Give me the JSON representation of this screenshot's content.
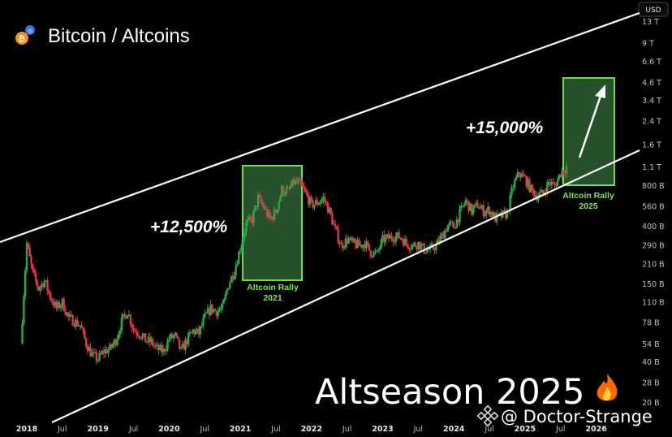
{
  "header": {
    "title": "Bitcoin / Altcoins",
    "currency_badge": "USD",
    "logo_icon": "bitcoin-altcoins-logo"
  },
  "annotations": {
    "rally_2021_pct": "+12,500%",
    "rally_2021_label_1": "Altcoin Rally",
    "rally_2021_label_2": "2021",
    "rally_2025_pct": "+15,000%",
    "rally_2025_label_1": "Altcoin Rally",
    "rally_2025_label_2": "2025",
    "banner": "Altseason 2025",
    "banner_icon": "fire-emoji",
    "watermark": "@ Doctor-Strange",
    "watermark_icon": "binance-icon"
  },
  "colors": {
    "up": "#2ba84a",
    "down": "#e2354d",
    "rally_box_fill": "#2e5e35",
    "rally_box_border": "#6fdc4a",
    "channel": "#ffffff"
  },
  "chart_data": {
    "type": "candlestick",
    "title": "Bitcoin / Altcoins",
    "scale": "log",
    "y_unit": "USD",
    "y_ticks": [
      "13 T",
      "9 T",
      "6.6 T",
      "4.6 T",
      "3.4 T",
      "2.4 T",
      "1.6 T",
      "1.1 T",
      "800 B",
      "560 B",
      "400 B",
      "290 B",
      "210 B",
      "150 B",
      "110 B",
      "78 B",
      "54 B",
      "40 B",
      "28 B",
      "20 B"
    ],
    "x_ticks": [
      "2018",
      "Jul",
      "2019",
      "Jul",
      "2020",
      "Jul",
      "2021",
      "Jul",
      "2022",
      "Jul",
      "2023",
      "Jul",
      "2024",
      "Jul",
      "2025",
      "Jul",
      "2026"
    ],
    "series_close": [
      [
        "2017-12",
        55
      ],
      [
        "2018-01",
        300
      ],
      [
        "2018-02",
        180
      ],
      [
        "2018-03",
        140
      ],
      [
        "2018-04",
        160
      ],
      [
        "2018-05",
        120
      ],
      [
        "2018-06",
        100
      ],
      [
        "2018-07",
        110
      ],
      [
        "2018-08",
        85
      ],
      [
        "2018-09",
        80
      ],
      [
        "2018-10",
        75
      ],
      [
        "2018-11",
        55
      ],
      [
        "2018-12",
        45
      ],
      [
        "2019-01",
        42
      ],
      [
        "2019-02",
        48
      ],
      [
        "2019-03",
        50
      ],
      [
        "2019-04",
        58
      ],
      [
        "2019-05",
        80
      ],
      [
        "2019-06",
        95
      ],
      [
        "2019-07",
        70
      ],
      [
        "2019-08",
        65
      ],
      [
        "2019-09",
        58
      ],
      [
        "2019-10",
        56
      ],
      [
        "2019-11",
        50
      ],
      [
        "2019-12",
        48
      ],
      [
        "2020-01",
        60
      ],
      [
        "2020-02",
        62
      ],
      [
        "2020-03",
        48
      ],
      [
        "2020-04",
        58
      ],
      [
        "2020-05",
        68
      ],
      [
        "2020-06",
        65
      ],
      [
        "2020-07",
        85
      ],
      [
        "2020-08",
        100
      ],
      [
        "2020-09",
        95
      ],
      [
        "2020-10",
        100
      ],
      [
        "2020-11",
        150
      ],
      [
        "2020-12",
        190
      ],
      [
        "2021-01",
        280
      ],
      [
        "2021-02",
        420
      ],
      [
        "2021-03",
        450
      ],
      [
        "2021-04",
        650
      ],
      [
        "2021-05",
        550
      ],
      [
        "2021-06",
        450
      ],
      [
        "2021-07",
        520
      ],
      [
        "2021-08",
        750
      ],
      [
        "2021-09",
        720
      ],
      [
        "2021-10",
        850
      ],
      [
        "2021-11",
        830
      ],
      [
        "2021-12",
        700
      ],
      [
        "2022-01",
        580
      ],
      [
        "2022-02",
        600
      ],
      [
        "2022-03",
        650
      ],
      [
        "2022-04",
        520
      ],
      [
        "2022-05",
        380
      ],
      [
        "2022-06",
        290
      ],
      [
        "2022-07",
        320
      ],
      [
        "2022-08",
        300
      ],
      [
        "2022-09",
        290
      ],
      [
        "2022-10",
        300
      ],
      [
        "2022-11",
        260
      ],
      [
        "2022-12",
        250
      ],
      [
        "2023-01",
        320
      ],
      [
        "2023-02",
        330
      ],
      [
        "2023-03",
        340
      ],
      [
        "2023-04",
        335
      ],
      [
        "2023-05",
        300
      ],
      [
        "2023-06",
        290
      ],
      [
        "2023-07",
        300
      ],
      [
        "2023-08",
        270
      ],
      [
        "2023-09",
        270
      ],
      [
        "2023-10",
        290
      ],
      [
        "2023-11",
        340
      ],
      [
        "2023-12",
        410
      ],
      [
        "2024-01",
        400
      ],
      [
        "2024-02",
        500
      ],
      [
        "2024-03",
        620
      ],
      [
        "2024-04",
        520
      ],
      [
        "2024-05",
        580
      ],
      [
        "2024-06",
        520
      ],
      [
        "2024-07",
        530
      ],
      [
        "2024-08",
        460
      ],
      [
        "2024-09",
        480
      ],
      [
        "2024-10",
        500
      ],
      [
        "2024-11",
        800
      ],
      [
        "2024-12",
        1000
      ],
      [
        "2025-01",
        900
      ],
      [
        "2025-02",
        750
      ],
      [
        "2025-03",
        680
      ],
      [
        "2025-04",
        700
      ],
      [
        "2025-05",
        850
      ],
      [
        "2025-06",
        800
      ],
      [
        "2025-07",
        1000
      ],
      [
        "2025-08",
        1100
      ]
    ]
  }
}
